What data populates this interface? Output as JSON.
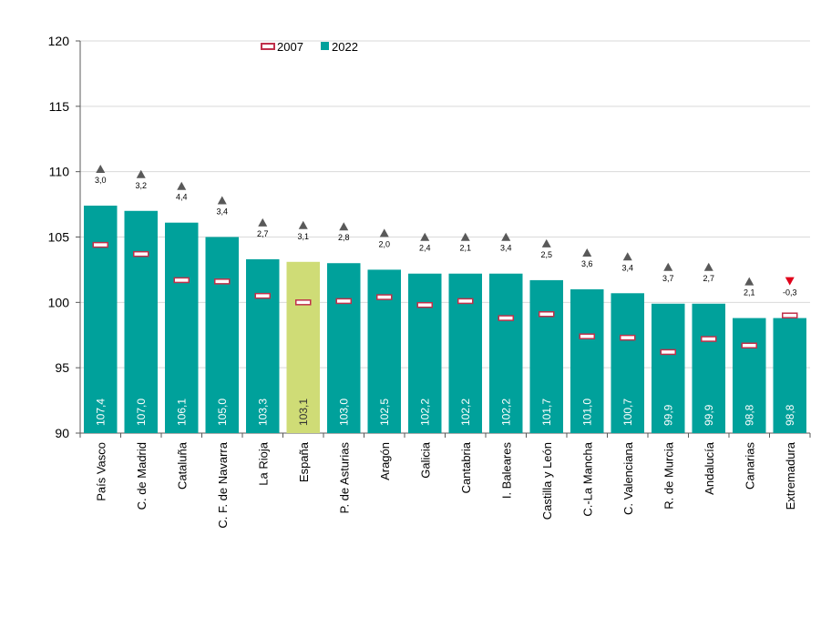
{
  "chart_data": {
    "type": "bar",
    "categories": [
      "País Vasco",
      "C. de Madrid",
      "Cataluña",
      "C. F. de Navarra",
      "La Rioja",
      "España",
      "P. de Asturias",
      "Aragón",
      "Galicia",
      "Cantabria",
      "I. Baleares",
      "Castilla y León",
      "C.-La Mancha",
      "C. Valenciana",
      "R. de Murcia",
      "Andalucía",
      "Canarias",
      "Extremadura"
    ],
    "series": [
      {
        "name": "2007",
        "values": [
          104.4,
          103.7,
          101.7,
          101.6,
          100.5,
          100.0,
          100.1,
          100.4,
          99.8,
          100.1,
          98.8,
          99.1,
          97.4,
          97.3,
          96.2,
          97.2,
          96.7,
          99.0
        ],
        "color": "#c0304a"
      },
      {
        "name": "2022",
        "values": [
          107.4,
          107.0,
          106.1,
          105.0,
          103.3,
          103.1,
          103.0,
          102.5,
          102.2,
          102.2,
          102.2,
          101.7,
          101.0,
          100.7,
          99.9,
          99.9,
          98.8,
          98.8
        ],
        "color": "#00a19b"
      }
    ],
    "value_labels": [
      "107,4",
      "107,0",
      "106,1",
      "105,0",
      "103,3",
      "103,1",
      "103,0",
      "102,5",
      "102,2",
      "102,2",
      "102,2",
      "101,7",
      "101,0",
      "100,7",
      "99,9",
      "99,9",
      "98,8",
      "98,8"
    ],
    "changes": [
      3.0,
      3.2,
      4.4,
      3.4,
      2.7,
      3.1,
      2.8,
      2.0,
      2.4,
      2.1,
      3.4,
      2.5,
      3.6,
      3.4,
      3.7,
      2.7,
      2.1,
      -0.3
    ],
    "change_labels": [
      "3,0",
      "3,2",
      "4,4",
      "3,4",
      "2,7",
      "3,1",
      "2,8",
      "2,0",
      "2,4",
      "2,1",
      "3,4",
      "2,5",
      "3,6",
      "3,4",
      "3,7",
      "2,7",
      "2,1",
      "-0,3"
    ],
    "highlight_category": "España",
    "highlight_color": "#cfdc76",
    "up_color": "#595959",
    "down_color": "#e0001a",
    "y_ticks": [
      90,
      95,
      100,
      105,
      110,
      115,
      120
    ],
    "ylim": [
      90,
      120
    ],
    "legend": [
      "2007",
      "2022"
    ],
    "legend_position": "top-center",
    "grid": true,
    "title": "",
    "xlabel": "",
    "ylabel": ""
  }
}
